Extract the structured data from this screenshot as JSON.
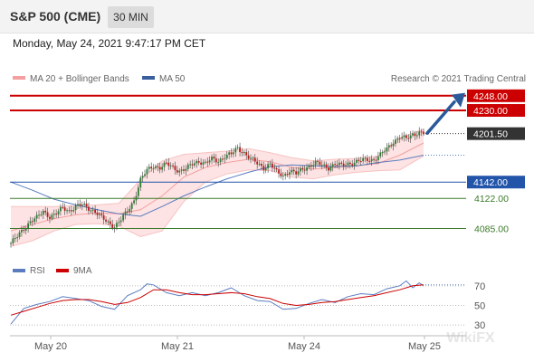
{
  "header": {
    "title": "S&P 500 (CME)",
    "interval": "30 MIN",
    "datetime": "Monday, May 24, 2021 9:47:17 PM CET"
  },
  "legend": {
    "bollinger": "MA 20 + Bollinger Bands",
    "ma50": "MA 50",
    "copyright": "Research © 2021 Trading Central"
  },
  "rsi_legend": {
    "rsi": "RSI",
    "ma": "9MA"
  },
  "watermark": "WikiFX",
  "colors": {
    "resistance": "#cc0000",
    "support": "#2255aa",
    "target": "#3a7a2a",
    "price": "#333333",
    "bollinger": "#f4a0a0",
    "ma50": "#5b7dc0",
    "rsi": "#5b7dc0",
    "rsi_ma": "#cc0000",
    "arrow": "#2a5a9a"
  },
  "chart_data": [
    {
      "type": "candlestick",
      "y_range": [
        4060,
        4260
      ],
      "x_labels": [
        "May 20",
        "May 21",
        "May 24",
        "May 25"
      ],
      "levels": [
        {
          "value": 4248.0,
          "label": "4248.00",
          "kind": "resistance"
        },
        {
          "value": 4230.0,
          "label": "4230.00",
          "kind": "resistance"
        },
        {
          "value": 4201.5,
          "label": "4201.50",
          "kind": "price"
        },
        {
          "value": 4142.0,
          "label": "4142.00",
          "kind": "support"
        },
        {
          "value": 4122.0,
          "label": "4122.00",
          "kind": "target"
        },
        {
          "value": 4085.0,
          "label": "4085.00",
          "kind": "target"
        }
      ],
      "price_path": [
        [
          0,
          4067
        ],
        [
          3,
          4075
        ],
        [
          6,
          4085
        ],
        [
          9,
          4094
        ],
        [
          12,
          4098
        ],
        [
          15,
          4106
        ],
        [
          18,
          4100
        ],
        [
          21,
          4103
        ],
        [
          24,
          4110
        ],
        [
          27,
          4107
        ],
        [
          30,
          4112
        ],
        [
          33,
          4114
        ],
        [
          36,
          4110
        ],
        [
          39,
          4106
        ],
        [
          42,
          4098
        ],
        [
          45,
          4092
        ],
        [
          48,
          4088
        ],
        [
          51,
          4096
        ],
        [
          54,
          4106
        ],
        [
          57,
          4120
        ],
        [
          60,
          4145
        ],
        [
          63,
          4156
        ],
        [
          66,
          4162
        ],
        [
          69,
          4160
        ],
        [
          72,
          4164
        ],
        [
          75,
          4160
        ],
        [
          78,
          4156
        ],
        [
          81,
          4158
        ],
        [
          84,
          4164
        ],
        [
          87,
          4168
        ],
        [
          90,
          4165
        ],
        [
          93,
          4170
        ],
        [
          96,
          4168
        ],
        [
          99,
          4174
        ],
        [
          102,
          4176
        ],
        [
          105,
          4184
        ],
        [
          108,
          4178
        ],
        [
          111,
          4170
        ],
        [
          114,
          4165
        ],
        [
          117,
          4160
        ],
        [
          120,
          4164
        ],
        [
          123,
          4154
        ],
        [
          126,
          4150
        ],
        [
          129,
          4156
        ],
        [
          132,
          4152
        ],
        [
          135,
          4158
        ],
        [
          138,
          4162
        ],
        [
          141,
          4165
        ],
        [
          144,
          4163
        ],
        [
          147,
          4160
        ],
        [
          150,
          4164
        ],
        [
          153,
          4162
        ],
        [
          156,
          4165
        ],
        [
          159,
          4166
        ],
        [
          162,
          4168
        ],
        [
          165,
          4170
        ],
        [
          168,
          4170
        ],
        [
          171,
          4175
        ],
        [
          174,
          4183
        ],
        [
          177,
          4192
        ],
        [
          180,
          4197
        ],
        [
          183,
          4195
        ],
        [
          186,
          4201
        ],
        [
          189,
          4203
        ],
        [
          191,
          4201.5
        ]
      ],
      "ma20": [
        [
          0,
          4082
        ],
        [
          10,
          4090
        ],
        [
          20,
          4097
        ],
        [
          30,
          4102
        ],
        [
          40,
          4104
        ],
        [
          50,
          4103
        ],
        [
          60,
          4108
        ],
        [
          70,
          4125
        ],
        [
          80,
          4148
        ],
        [
          90,
          4160
        ],
        [
          100,
          4166
        ],
        [
          110,
          4170
        ],
        [
          120,
          4167
        ],
        [
          130,
          4160
        ],
        [
          140,
          4158
        ],
        [
          150,
          4160
        ],
        [
          160,
          4162
        ],
        [
          170,
          4165
        ],
        [
          180,
          4175
        ],
        [
          191,
          4190
        ]
      ],
      "bb_upper": [
        [
          0,
          4112
        ],
        [
          10,
          4112
        ],
        [
          20,
          4112
        ],
        [
          30,
          4113
        ],
        [
          40,
          4114
        ],
        [
          50,
          4116
        ],
        [
          60,
          4145
        ],
        [
          70,
          4168
        ],
        [
          80,
          4176
        ],
        [
          90,
          4178
        ],
        [
          100,
          4180
        ],
        [
          110,
          4183
        ],
        [
          120,
          4178
        ],
        [
          130,
          4172
        ],
        [
          140,
          4168
        ],
        [
          150,
          4170
        ],
        [
          160,
          4171
        ],
        [
          170,
          4174
        ],
        [
          180,
          4196
        ],
        [
          191,
          4207
        ]
      ],
      "bb_lower": [
        [
          0,
          4063
        ],
        [
          10,
          4070
        ],
        [
          20,
          4082
        ],
        [
          30,
          4090
        ],
        [
          40,
          4091
        ],
        [
          50,
          4088
        ],
        [
          60,
          4075
        ],
        [
          70,
          4082
        ],
        [
          80,
          4118
        ],
        [
          90,
          4142
        ],
        [
          100,
          4152
        ],
        [
          110,
          4157
        ],
        [
          120,
          4156
        ],
        [
          130,
          4148
        ],
        [
          140,
          4146
        ],
        [
          150,
          4151
        ],
        [
          160,
          4154
        ],
        [
          170,
          4156
        ],
        [
          180,
          4157
        ],
        [
          191,
          4174
        ]
      ],
      "ma50": [
        [
          0,
          4142
        ],
        [
          10,
          4132
        ],
        [
          20,
          4121
        ],
        [
          30,
          4114
        ],
        [
          40,
          4108
        ],
        [
          50,
          4103
        ],
        [
          60,
          4100
        ],
        [
          70,
          4112
        ],
        [
          80,
          4125
        ],
        [
          90,
          4136
        ],
        [
          100,
          4146
        ],
        [
          110,
          4154
        ],
        [
          120,
          4161
        ],
        [
          130,
          4163
        ],
        [
          140,
          4162
        ],
        [
          150,
          4161
        ],
        [
          160,
          4162
        ],
        [
          170,
          4166
        ],
        [
          180,
          4169
        ],
        [
          191,
          4175
        ]
      ],
      "forecast_arrow": {
        "from": 4202,
        "to": 4246
      }
    },
    {
      "type": "line",
      "y_range": [
        20,
        80
      ],
      "levels": [
        70,
        50,
        30
      ],
      "rsi": [
        [
          0,
          31
        ],
        [
          6,
          47
        ],
        [
          12,
          51
        ],
        [
          18,
          54
        ],
        [
          24,
          59
        ],
        [
          30,
          57
        ],
        [
          36,
          55
        ],
        [
          42,
          49
        ],
        [
          48,
          46
        ],
        [
          54,
          60
        ],
        [
          60,
          66
        ],
        [
          63,
          72
        ],
        [
          66,
          71
        ],
        [
          72,
          63
        ],
        [
          78,
          60
        ],
        [
          84,
          63
        ],
        [
          90,
          60
        ],
        [
          96,
          63
        ],
        [
          102,
          68
        ],
        [
          108,
          60
        ],
        [
          114,
          55
        ],
        [
          120,
          54
        ],
        [
          126,
          46
        ],
        [
          132,
          47
        ],
        [
          138,
          52
        ],
        [
          144,
          56
        ],
        [
          150,
          53
        ],
        [
          156,
          59
        ],
        [
          162,
          62
        ],
        [
          168,
          61
        ],
        [
          174,
          67
        ],
        [
          180,
          70
        ],
        [
          183,
          75
        ],
        [
          186,
          68
        ],
        [
          189,
          73
        ],
        [
          191,
          70
        ]
      ],
      "rsi_ma": [
        [
          0,
          40
        ],
        [
          6,
          44
        ],
        [
          12,
          48
        ],
        [
          18,
          52
        ],
        [
          24,
          55
        ],
        [
          30,
          56
        ],
        [
          36,
          56
        ],
        [
          42,
          54
        ],
        [
          48,
          51
        ],
        [
          54,
          53
        ],
        [
          60,
          58
        ],
        [
          66,
          66
        ],
        [
          72,
          66
        ],
        [
          78,
          63
        ],
        [
          84,
          61
        ],
        [
          90,
          61
        ],
        [
          96,
          62
        ],
        [
          102,
          63
        ],
        [
          108,
          62
        ],
        [
          114,
          59
        ],
        [
          120,
          57
        ],
        [
          126,
          52
        ],
        [
          132,
          50
        ],
        [
          138,
          51
        ],
        [
          144,
          53
        ],
        [
          150,
          54
        ],
        [
          156,
          56
        ],
        [
          162,
          58
        ],
        [
          168,
          60
        ],
        [
          174,
          63
        ],
        [
          180,
          66
        ],
        [
          186,
          70
        ],
        [
          191,
          71
        ]
      ]
    }
  ]
}
